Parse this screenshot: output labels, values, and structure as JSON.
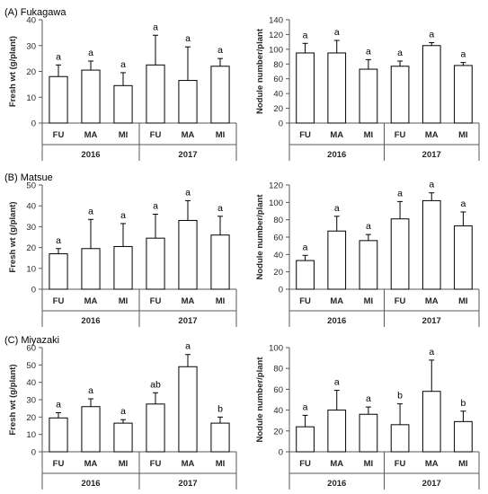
{
  "chart_data": [
    {
      "type": "bar",
      "title": "(A) Fukagawa",
      "ylabel": "Fresh wt (g/plant)",
      "xlabel": "",
      "ylim": [
        0,
        40
      ],
      "yticks": [
        0,
        10,
        20,
        30,
        40
      ],
      "groups": [
        {
          "label": "2016",
          "categories": [
            "FU",
            "MA",
            "MI"
          ],
          "values": [
            18,
            20.5,
            14.5
          ],
          "errors": [
            4.5,
            3.5,
            5
          ],
          "letters": [
            "a",
            "a",
            "a"
          ]
        },
        {
          "label": "2017",
          "categories": [
            "FU",
            "MA",
            "MI"
          ],
          "values": [
            22.5,
            16.5,
            22
          ],
          "errors": [
            11.5,
            13,
            3
          ],
          "letters": [
            "a",
            "a",
            "a"
          ]
        }
      ]
    },
    {
      "type": "bar",
      "title": "",
      "ylabel": "Nodule number/plant",
      "xlabel": "",
      "ylim": [
        0,
        140
      ],
      "yticks": [
        0,
        20,
        40,
        60,
        80,
        100,
        120,
        140
      ],
      "groups": [
        {
          "label": "2016",
          "categories": [
            "FU",
            "MA",
            "MI"
          ],
          "values": [
            95,
            95,
            73
          ],
          "errors": [
            13,
            17,
            13
          ],
          "letters": [
            "a",
            "a",
            "a"
          ]
        },
        {
          "label": "2017",
          "categories": [
            "FU",
            "MA",
            "MI"
          ],
          "values": [
            77,
            105,
            78
          ],
          "errors": [
            7,
            4,
            4
          ],
          "letters": [
            "a",
            "a",
            "a"
          ]
        }
      ]
    },
    {
      "type": "bar",
      "title": "(B) Matsue",
      "ylabel": "Fresh wt (g/plant)",
      "xlabel": "",
      "ylim": [
        0,
        50
      ],
      "yticks": [
        0,
        10,
        20,
        30,
        40,
        50
      ],
      "groups": [
        {
          "label": "2016",
          "categories": [
            "FU",
            "MA",
            "MI"
          ],
          "values": [
            17,
            19.5,
            20.5
          ],
          "errors": [
            2.5,
            14,
            11
          ],
          "letters": [
            "a",
            "a",
            "a"
          ]
        },
        {
          "label": "2017",
          "categories": [
            "FU",
            "MA",
            "MI"
          ],
          "values": [
            24.5,
            33,
            26
          ],
          "errors": [
            11.5,
            9.5,
            9
          ],
          "letters": [
            "a",
            "a",
            "a"
          ]
        }
      ]
    },
    {
      "type": "bar",
      "title": "",
      "ylabel": "Nodule number/plant",
      "xlabel": "",
      "ylim": [
        0,
        120
      ],
      "yticks": [
        0,
        20,
        40,
        60,
        80,
        100,
        120
      ],
      "groups": [
        {
          "label": "2016",
          "categories": [
            "FU",
            "MA",
            "MI"
          ],
          "values": [
            33,
            67,
            56
          ],
          "errors": [
            6,
            17,
            7
          ],
          "letters": [
            "a",
            "a",
            "a"
          ]
        },
        {
          "label": "2017",
          "categories": [
            "FU",
            "MA",
            "MI"
          ],
          "values": [
            81,
            102,
            73
          ],
          "errors": [
            20,
            9,
            16
          ],
          "letters": [
            "a",
            "a",
            "a"
          ]
        }
      ]
    },
    {
      "type": "bar",
      "title": "(C) Miyazaki",
      "ylabel": "Fresh wt (g/plant)",
      "xlabel": "",
      "ylim": [
        0,
        60
      ],
      "yticks": [
        0,
        10,
        20,
        30,
        40,
        50,
        60
      ],
      "groups": [
        {
          "label": "2016",
          "categories": [
            "FU",
            "MA",
            "MI"
          ],
          "values": [
            19.5,
            26,
            16.5
          ],
          "errors": [
            3,
            4.5,
            2
          ],
          "letters": [
            "a",
            "a",
            "a"
          ]
        },
        {
          "label": "2017",
          "categories": [
            "FU",
            "MA",
            "MI"
          ],
          "values": [
            27.5,
            49,
            16.5
          ],
          "errors": [
            6.5,
            7,
            3.5
          ],
          "letters": [
            "ab",
            "a",
            "b"
          ]
        }
      ]
    },
    {
      "type": "bar",
      "title": "",
      "ylabel": "Nodule number/plant",
      "xlabel": "",
      "ylim": [
        0,
        100
      ],
      "yticks": [
        0,
        20,
        40,
        60,
        80,
        100
      ],
      "groups": [
        {
          "label": "2016",
          "categories": [
            "FU",
            "MA",
            "MI"
          ],
          "values": [
            24,
            40,
            36
          ],
          "errors": [
            11,
            19,
            7
          ],
          "letters": [
            "a",
            "a",
            "a"
          ]
        },
        {
          "label": "2017",
          "categories": [
            "FU",
            "MA",
            "MI"
          ],
          "values": [
            26,
            58,
            29
          ],
          "errors": [
            20,
            30,
            10
          ],
          "letters": [
            "b",
            "a",
            "b"
          ]
        }
      ]
    }
  ]
}
